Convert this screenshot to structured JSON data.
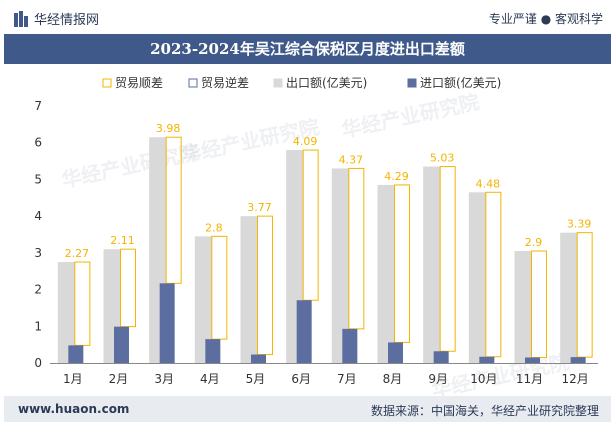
{
  "header": {
    "brand": "华经情报网",
    "tagline": "专业严谨 ● 客观科学"
  },
  "footer": {
    "url": "www.huaon.com",
    "source": "数据来源：中国海关，华经产业研究院整理"
  },
  "watermark": "华经产业研究院",
  "colors": {
    "export": "#d9d9d9",
    "import": "#5b6e9f",
    "surplus": "#f4b400",
    "deficit": "#5b6e9f",
    "title_bg": "#3f5a8a"
  },
  "chart_data": {
    "type": "bar",
    "title": "2023-2024年吴江综合保税区月度进出口差额",
    "categories": [
      "1月",
      "2月",
      "3月",
      "4月",
      "5月",
      "6月",
      "7月",
      "8月",
      "9月",
      "10月",
      "11月",
      "12月"
    ],
    "series": [
      {
        "name": "贸易顺差",
        "values": [
          2.27,
          2.11,
          3.98,
          2.8,
          3.77,
          4.09,
          4.37,
          4.29,
          5.03,
          4.48,
          2.9,
          3.39
        ]
      },
      {
        "name": "贸易逆差",
        "values": [
          0,
          0,
          0,
          0,
          0,
          0,
          0,
          0,
          0,
          0,
          0,
          0
        ]
      },
      {
        "name": "出口额(亿美元)",
        "values": [
          2.75,
          3.1,
          6.15,
          3.45,
          4.0,
          5.8,
          5.3,
          4.85,
          5.35,
          4.65,
          3.05,
          3.55
        ]
      },
      {
        "name": "进口额(亿美元)",
        "values": [
          0.48,
          0.99,
          2.17,
          0.65,
          0.23,
          1.71,
          0.93,
          0.56,
          0.32,
          0.17,
          0.15,
          0.16
        ]
      }
    ],
    "data_labels": [
      "2.27",
      "2.11",
      "3.98",
      "2.8",
      "3.77",
      "4.09",
      "4.37",
      "4.29",
      "5.03",
      "4.48",
      "2.9",
      "3.39"
    ],
    "yticks": [
      "0",
      "1",
      "2",
      "3",
      "4",
      "5",
      "6",
      "7"
    ],
    "ylim": [
      0,
      7
    ],
    "legend": "top-center",
    "grid": false
  }
}
